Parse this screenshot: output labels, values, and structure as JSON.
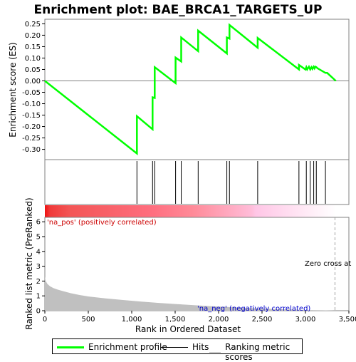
{
  "chart_data": {
    "type": "line",
    "title": "Enrichment plot: BAE_BRCA1_TARGETS_UP",
    "top_panel": {
      "ylabel": "Enrichment score (ES)",
      "ylim": [
        -0.345,
        0.27
      ],
      "yticks": [
        "0.25",
        "0.20",
        "0.15",
        "0.10",
        "0.05",
        "0.00",
        "-0.05",
        "-0.10",
        "-0.15",
        "-0.20",
        "-0.25",
        "-0.30"
      ],
      "ytick_values": [
        0.25,
        0.2,
        0.15,
        0.1,
        0.05,
        0.0,
        -0.05,
        -0.1,
        -0.15,
        -0.2,
        -0.25,
        -0.3
      ],
      "series": [
        {
          "name": "Enrichment profile",
          "color": "#00ff00",
          "x": [
            0,
            1060,
            1060,
            1240,
            1240,
            1265,
            1265,
            1505,
            1505,
            1570,
            1570,
            1765,
            1765,
            2095,
            2095,
            2125,
            2125,
            2450,
            2450,
            2925,
            2925,
            3000,
            3010,
            3020,
            3040,
            3055,
            3070,
            3080,
            3095,
            3105,
            3115,
            3125,
            3140,
            3230,
            3250,
            3350
          ],
          "y": [
            0.0,
            -0.318,
            -0.155,
            -0.212,
            -0.072,
            -0.075,
            0.06,
            -0.01,
            0.102,
            0.085,
            0.19,
            0.13,
            0.22,
            0.12,
            0.19,
            0.185,
            0.245,
            0.145,
            0.188,
            0.05,
            0.07,
            0.05,
            0.06,
            0.05,
            0.062,
            0.05,
            0.06,
            0.052,
            0.062,
            0.055,
            0.062,
            0.06,
            0.055,
            0.035,
            0.035,
            0.0
          ]
        }
      ]
    },
    "hits": {
      "name": "Hits",
      "positions": [
        1060,
        1240,
        1265,
        1505,
        1570,
        1765,
        2095,
        2125,
        2450,
        2925,
        3010,
        3055,
        3095,
        3125,
        3230
      ]
    },
    "bottom_panel": {
      "ylabel": "Ranked list metric (PreRanked)",
      "xlabel": "Rank in Ordered Dataset",
      "xlim": [
        0,
        3500
      ],
      "xticks": [
        "0",
        "500",
        "1,000",
        "1,500",
        "2,000",
        "2,500",
        "3,000",
        "3,500"
      ],
      "xtick_values": [
        0,
        500,
        1000,
        1500,
        2000,
        2500,
        3000,
        3500
      ],
      "ylim": [
        0,
        6.3
      ],
      "yticks": [
        "0",
        "1",
        "2",
        "3",
        "4",
        "5",
        "6"
      ],
      "ytick_values": [
        0,
        1,
        2,
        3,
        4,
        5,
        6
      ],
      "series": [
        {
          "name": "Ranking metric scores",
          "color": "#c0c0c0",
          "x": [
            0,
            10,
            30,
            60,
            100,
            150,
            200,
            300,
            400,
            500,
            700,
            900,
            1100,
            1300,
            1500,
            1700,
            1900,
            2100,
            2300,
            2500,
            2700,
            2900,
            3000,
            3100,
            3200,
            3300,
            3340
          ],
          "y": [
            2.3,
            2.0,
            1.8,
            1.65,
            1.52,
            1.42,
            1.33,
            1.18,
            1.06,
            0.96,
            0.83,
            0.72,
            0.62,
            0.53,
            0.45,
            0.38,
            0.31,
            0.25,
            0.19,
            0.14,
            0.1,
            0.07,
            0.05,
            0.04,
            0.03,
            0.01,
            0.0
          ]
        }
      ],
      "zero_cross_at": 3340,
      "annotations": {
        "pos": "'na_pos' (positively correlated)",
        "neg": "'na_neg' (negatively correlated)",
        "zero_cross": "Zero cross at"
      }
    },
    "color_bar": {
      "stops": [
        {
          "x": 0,
          "color": "#ee1111"
        },
        {
          "x": 60,
          "color": "#f03a3a"
        },
        {
          "x": 280,
          "color": "#f35555"
        },
        {
          "x": 1250,
          "color": "#ff6f80"
        },
        {
          "x": 1700,
          "color": "#ff8a98"
        },
        {
          "x": 2370,
          "color": "#ffbcd8"
        },
        {
          "x": 2430,
          "color": "#ffc6e6"
        },
        {
          "x": 3350,
          "color": "#ffffff"
        }
      ]
    },
    "legend": {
      "entries": [
        {
          "label": "Enrichment profile",
          "color": "#00ff00",
          "kind": "line-thick"
        },
        {
          "label": "Hits",
          "color": "#000000",
          "kind": "line"
        },
        {
          "label": "Ranking metric scores",
          "color": "#c0c0c0",
          "kind": "line"
        }
      ],
      "placement": "bottom"
    }
  }
}
